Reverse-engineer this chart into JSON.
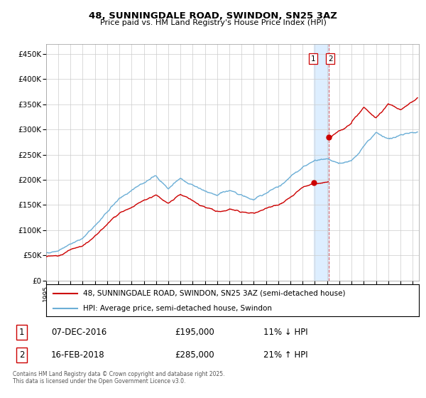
{
  "title": "48, SUNNINGDALE ROAD, SWINDON, SN25 3AZ",
  "subtitle": "Price paid vs. HM Land Registry's House Price Index (HPI)",
  "ylabel_ticks": [
    "£0",
    "£50K",
    "£100K",
    "£150K",
    "£200K",
    "£250K",
    "£300K",
    "£350K",
    "£400K",
    "£450K"
  ],
  "ylim": [
    0,
    470000
  ],
  "xlim_start": 1995.0,
  "xlim_end": 2025.5,
  "transaction1_date": 2016.92,
  "transaction1_price": 195000,
  "transaction2_date": 2018.12,
  "transaction2_price": 285000,
  "hpi_color": "#6baed6",
  "price_color": "#cc0000",
  "dashed_line_color": "#cc0000",
  "highlight_color": "#ddeeff",
  "legend1": "48, SUNNINGDALE ROAD, SWINDON, SN25 3AZ (semi-detached house)",
  "legend2": "HPI: Average price, semi-detached house, Swindon",
  "table_rows": [
    {
      "num": "1",
      "date": "07-DEC-2016",
      "price": "£195,000",
      "hpi": "11% ↓ HPI"
    },
    {
      "num": "2",
      "date": "16-FEB-2018",
      "price": "£285,000",
      "hpi": "21% ↑ HPI"
    }
  ],
  "footer": "Contains HM Land Registry data © Crown copyright and database right 2025.\nThis data is licensed under the Open Government Licence v3.0.",
  "background_color": "#ffffff",
  "grid_color": "#cccccc"
}
